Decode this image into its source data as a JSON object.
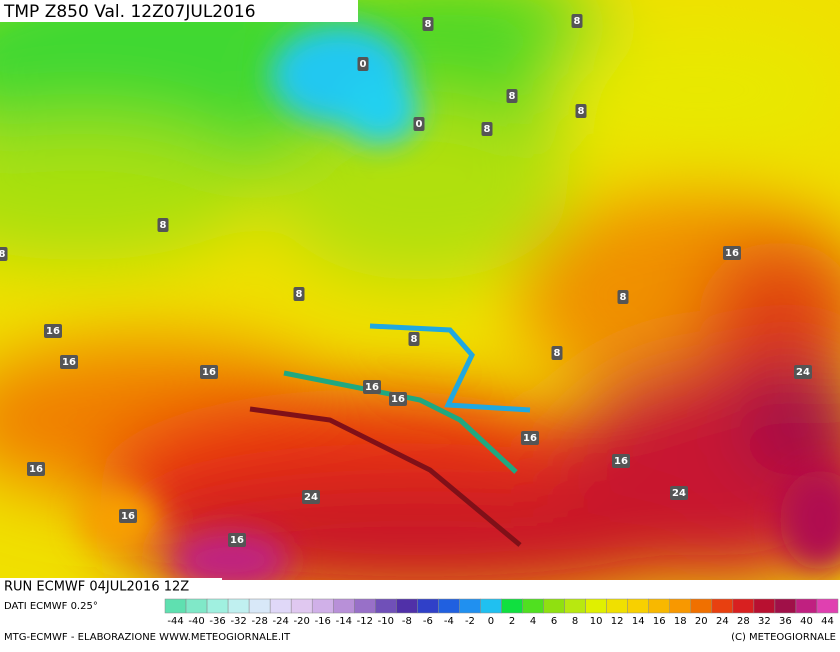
{
  "header": {
    "title": "TMP  Z850 Val. 12Z07JUL2016"
  },
  "footer": {
    "run": "RUN ECMWF 04JUL2016 12Z",
    "source": "DATI ECMWF 0.25°",
    "credit": "MTG-ECMWF - ELABORAZIONE WWW.METEOGIORNALE.IT",
    "copyright": "(C) METEOGIORNALE"
  },
  "legend": {
    "labels": [
      -44,
      -40,
      -36,
      -32,
      -28,
      -24,
      -20,
      -16,
      -14,
      -12,
      -10,
      -8,
      -6,
      -4,
      -2,
      0,
      2,
      4,
      6,
      8,
      10,
      12,
      14,
      16,
      18,
      20,
      24,
      28,
      32,
      36,
      40,
      44
    ],
    "colors": [
      "#5fe0b0",
      "#80e8c8",
      "#a0f0e0",
      "#c0f0f0",
      "#d8e8f8",
      "#e0d8f8",
      "#e0c8f0",
      "#d0b0e8",
      "#b890d8",
      "#9870c8",
      "#7050b8",
      "#5030a8",
      "#3040c8",
      "#2060e0",
      "#2090f0",
      "#20c0f0",
      "#10e040",
      "#50e020",
      "#90e010",
      "#b8e810",
      "#e0f000",
      "#f0e000",
      "#f8d000",
      "#f8b800",
      "#f89800",
      "#f07000",
      "#e84010",
      "#d82020",
      "#b81030",
      "#a01048",
      "#c02080",
      "#e040b0"
    ]
  },
  "isolines": [
    "8",
    "8",
    "0",
    "8",
    "8",
    "8",
    "0",
    "8",
    "8",
    "16",
    "8",
    "8",
    "16",
    "16",
    "8",
    "8",
    "16",
    "24",
    "16",
    "16",
    "16",
    "16",
    "16",
    "24",
    "24",
    "16",
    "16"
  ]
}
